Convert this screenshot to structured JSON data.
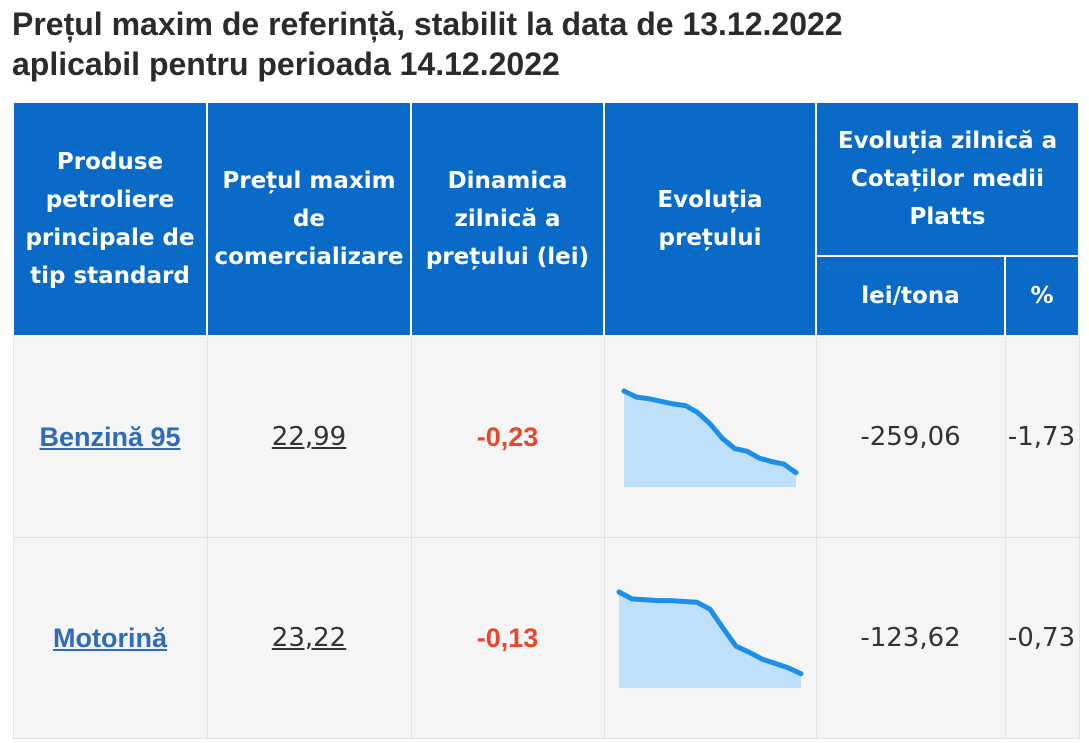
{
  "page": {
    "title_line1": "Prețul maxim de referință, stabilit la data de 13.12.2022",
    "title_line2": "aplicabil pentru perioada 14.12.2022"
  },
  "table": {
    "headers": {
      "product": "Produse petroliere principale de tip standard",
      "max_price": "Prețul maxim de comercializare",
      "daily_dynamics": "Dinamica zilnică a prețului (lei)",
      "price_evolution": "Evoluția prețului",
      "platts": "Evoluția zilnică a Cotaților medii Platts",
      "platts_lei_tona": "lei/tona",
      "platts_percent": "%"
    },
    "rows": [
      {
        "product": "Benzină 95",
        "max_price": "22,99",
        "daily_change": "-0,23",
        "platts_lei_tona": "-259,06",
        "platts_percent": "-1,73",
        "sparkline": [
          1.0,
          0.93,
          0.91,
          0.88,
          0.85,
          0.83,
          0.75,
          0.62,
          0.45,
          0.33,
          0.3,
          0.22,
          0.18,
          0.15,
          0.05
        ]
      },
      {
        "product": "Motorină",
        "max_price": "23,22",
        "daily_change": "-0,13",
        "platts_lei_tona": "-123,62",
        "platts_percent": "-0,73",
        "sparkline": [
          1.0,
          0.92,
          0.91,
          0.9,
          0.9,
          0.89,
          0.88,
          0.8,
          0.58,
          0.37,
          0.3,
          0.22,
          0.17,
          0.12,
          0.05
        ]
      }
    ]
  },
  "colors": {
    "header_bg": "#0a6ac7",
    "link": "#2e6bb8",
    "negative": "#e8472b",
    "spark_line": "#1e8fe8",
    "spark_fill": "#bfe0fb"
  }
}
